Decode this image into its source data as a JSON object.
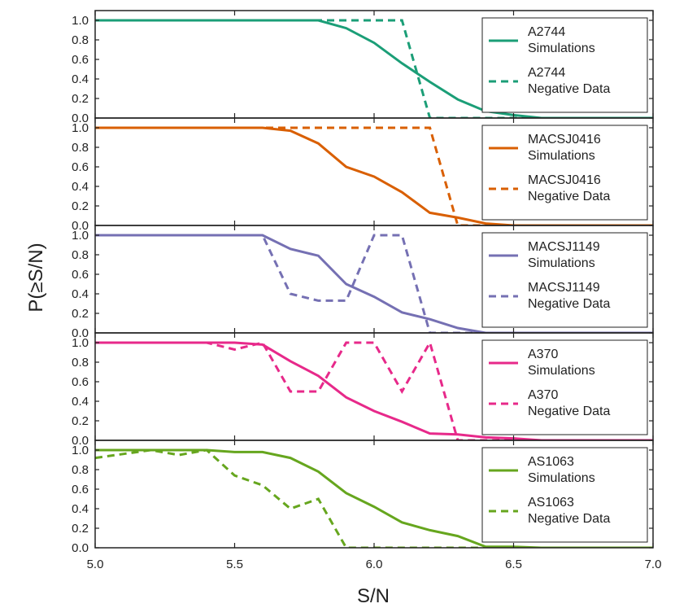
{
  "chart_data": {
    "type": "line",
    "xlabel": "S/N",
    "ylabel": "P(≥S/N)",
    "xlim": [
      5.0,
      7.0
    ],
    "ylim": [
      0.0,
      1.1
    ],
    "x_ticks": [
      5.0,
      5.5,
      6.0,
      6.5,
      7.0
    ],
    "x_tick_labels": [
      "5.0",
      "5.5",
      "6.0",
      "6.5",
      "7.0"
    ],
    "y_ticks": [
      0.0,
      0.2,
      0.4,
      0.6,
      0.8,
      1.0
    ],
    "y_tick_labels": [
      "0.0",
      "0.2",
      "0.4",
      "0.6",
      "0.8",
      "1.0"
    ],
    "legend_position": "top-right",
    "panels": [
      {
        "id": "a2744",
        "color": "#1b9e77",
        "series": [
          {
            "name": "A2744 Simulations",
            "legend_lines": [
              "A2744",
              "Simulations"
            ],
            "style": "solid",
            "x": [
              5.0,
              5.1,
              5.2,
              5.3,
              5.4,
              5.5,
              5.6,
              5.7,
              5.8,
              5.9,
              6.0,
              6.1,
              6.2,
              6.3,
              6.4,
              6.5,
              6.6,
              6.7,
              6.8,
              6.9,
              7.0
            ],
            "y": [
              1.0,
              1.0,
              1.0,
              1.0,
              1.0,
              1.0,
              1.0,
              1.0,
              1.0,
              0.92,
              0.77,
              0.56,
              0.37,
              0.19,
              0.07,
              0.03,
              0.0,
              0.0,
              0.0,
              0.0,
              0.0
            ]
          },
          {
            "name": "A2744 Negative Data",
            "legend_lines": [
              "A2744",
              "Negative Data"
            ],
            "style": "dashed",
            "x": [
              5.0,
              5.1,
              5.2,
              5.3,
              5.4,
              5.5,
              5.6,
              5.7,
              5.8,
              5.9,
              6.0,
              6.1,
              6.2,
              6.3,
              6.4,
              6.5,
              6.6,
              6.7,
              6.8,
              6.9,
              7.0
            ],
            "y": [
              1.0,
              1.0,
              1.0,
              1.0,
              1.0,
              1.0,
              1.0,
              1.0,
              1.0,
              1.0,
              1.0,
              1.0,
              0.0,
              0.0,
              0.0,
              0.0,
              0.0,
              0.0,
              0.0,
              0.0,
              0.0
            ]
          }
        ]
      },
      {
        "id": "macsj0416",
        "color": "#d95f02",
        "series": [
          {
            "name": "MACSJ0416 Simulations",
            "legend_lines": [
              "MACSJ0416",
              "Simulations"
            ],
            "style": "solid",
            "x": [
              5.0,
              5.1,
              5.2,
              5.3,
              5.4,
              5.5,
              5.6,
              5.7,
              5.8,
              5.9,
              6.0,
              6.1,
              6.2,
              6.3,
              6.4,
              6.5,
              6.6,
              6.7,
              6.8,
              6.9,
              7.0
            ],
            "y": [
              1.0,
              1.0,
              1.0,
              1.0,
              1.0,
              1.0,
              1.0,
              0.97,
              0.84,
              0.6,
              0.5,
              0.34,
              0.13,
              0.08,
              0.02,
              0.0,
              0.0,
              0.0,
              0.0,
              0.0,
              0.0
            ]
          },
          {
            "name": "MACSJ0416 Negative Data",
            "legend_lines": [
              "MACSJ0416",
              "Negative Data"
            ],
            "style": "dashed",
            "x": [
              5.0,
              5.1,
              5.2,
              5.3,
              5.4,
              5.5,
              5.6,
              5.7,
              5.8,
              5.9,
              6.0,
              6.1,
              6.2,
              6.3,
              6.4,
              6.5,
              6.6,
              6.7,
              6.8,
              6.9,
              7.0
            ],
            "y": [
              1.0,
              1.0,
              1.0,
              1.0,
              1.0,
              1.0,
              1.0,
              1.0,
              1.0,
              1.0,
              1.0,
              1.0,
              1.0,
              0.0,
              0.0,
              0.0,
              0.0,
              0.0,
              0.0,
              0.0,
              0.0
            ]
          }
        ]
      },
      {
        "id": "macsj1149",
        "color": "#7570b3",
        "series": [
          {
            "name": "MACSJ1149 Simulations",
            "legend_lines": [
              "MACSJ1149",
              "Simulations"
            ],
            "style": "solid",
            "x": [
              5.0,
              5.1,
              5.2,
              5.3,
              5.4,
              5.5,
              5.6,
              5.7,
              5.8,
              5.9,
              6.0,
              6.1,
              6.2,
              6.3,
              6.4,
              6.5,
              6.6,
              6.7,
              6.8,
              6.9,
              7.0
            ],
            "y": [
              1.0,
              1.0,
              1.0,
              1.0,
              1.0,
              1.0,
              1.0,
              0.86,
              0.79,
              0.5,
              0.37,
              0.21,
              0.14,
              0.05,
              0.0,
              0.0,
              0.0,
              0.0,
              0.0,
              0.0,
              0.0
            ]
          },
          {
            "name": "MACSJ1149 Negative Data",
            "legend_lines": [
              "MACSJ1149",
              "Negative Data"
            ],
            "style": "dashed",
            "x": [
              5.0,
              5.1,
              5.2,
              5.3,
              5.4,
              5.5,
              5.6,
              5.7,
              5.8,
              5.9,
              6.0,
              6.1,
              6.2,
              6.3,
              6.4,
              6.5,
              6.6,
              6.7,
              6.8,
              6.9,
              7.0
            ],
            "y": [
              1.0,
              1.0,
              1.0,
              1.0,
              1.0,
              1.0,
              1.0,
              0.4,
              0.33,
              0.33,
              1.0,
              1.0,
              0.0,
              0.0,
              0.0,
              0.0,
              0.0,
              0.0,
              0.0,
              0.0,
              0.0
            ]
          }
        ]
      },
      {
        "id": "a370",
        "color": "#e7298a",
        "series": [
          {
            "name": "A370 Simulations",
            "legend_lines": [
              "A370",
              "Simulations"
            ],
            "style": "solid",
            "x": [
              5.0,
              5.1,
              5.2,
              5.3,
              5.4,
              5.5,
              5.6,
              5.7,
              5.8,
              5.9,
              6.0,
              6.1,
              6.2,
              6.3,
              6.4,
              6.5,
              6.6,
              6.7,
              6.8,
              6.9,
              7.0
            ],
            "y": [
              1.0,
              1.0,
              1.0,
              1.0,
              1.0,
              1.0,
              0.98,
              0.81,
              0.66,
              0.44,
              0.3,
              0.19,
              0.07,
              0.06,
              0.03,
              0.02,
              0.0,
              0.0,
              0.0,
              0.0,
              0.0
            ]
          },
          {
            "name": "A370 Negative Data",
            "legend_lines": [
              "A370",
              "Negative Data"
            ],
            "style": "dashed",
            "x": [
              5.0,
              5.1,
              5.2,
              5.3,
              5.4,
              5.5,
              5.6,
              5.7,
              5.8,
              5.9,
              6.0,
              6.1,
              6.2,
              6.3,
              6.4,
              6.5,
              6.6,
              6.7,
              6.8,
              6.9,
              7.0
            ],
            "y": [
              1.0,
              1.0,
              1.0,
              1.0,
              1.0,
              0.93,
              1.0,
              0.5,
              0.5,
              1.0,
              1.0,
              0.5,
              1.0,
              0.0,
              0.0,
              0.0,
              0.0,
              0.0,
              0.0,
              0.0,
              0.0
            ]
          }
        ]
      },
      {
        "id": "as1063",
        "color": "#66a61e",
        "series": [
          {
            "name": "AS1063 Simulations",
            "legend_lines": [
              "AS1063",
              "Simulations"
            ],
            "style": "solid",
            "x": [
              5.0,
              5.1,
              5.2,
              5.3,
              5.4,
              5.5,
              5.6,
              5.7,
              5.8,
              5.9,
              6.0,
              6.1,
              6.2,
              6.3,
              6.4,
              6.5,
              6.6,
              6.7,
              6.8,
              6.9,
              7.0
            ],
            "y": [
              1.0,
              1.0,
              1.0,
              1.0,
              1.0,
              0.98,
              0.98,
              0.92,
              0.78,
              0.56,
              0.42,
              0.26,
              0.18,
              0.12,
              0.01,
              0.01,
              0.0,
              0.0,
              0.0,
              0.0,
              0.0
            ]
          },
          {
            "name": "AS1063 Negative Data",
            "legend_lines": [
              "AS1063",
              "Negative Data"
            ],
            "style": "dashed",
            "x": [
              5.0,
              5.1,
              5.2,
              5.3,
              5.4,
              5.5,
              5.6,
              5.7,
              5.8,
              5.9,
              6.0,
              6.1,
              6.2,
              6.3,
              6.4,
              6.5,
              6.6,
              6.7,
              6.8,
              6.9,
              7.0
            ],
            "y": [
              0.92,
              0.96,
              1.0,
              0.95,
              1.0,
              0.74,
              0.64,
              0.4,
              0.5,
              0.0,
              0.0,
              0.0,
              0.0,
              0.0,
              0.0,
              0.0,
              0.0,
              0.0,
              0.0,
              0.0,
              0.0
            ]
          }
        ]
      }
    ]
  }
}
